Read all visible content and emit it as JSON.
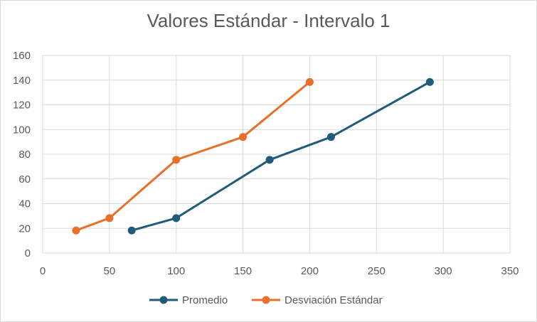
{
  "chart_data": {
    "type": "scatter",
    "title": "Valores Estándar - Intervalo 1",
    "xlim": [
      0,
      350
    ],
    "ylim": [
      0,
      160
    ],
    "x_ticks": [
      0,
      50,
      100,
      150,
      200,
      250,
      300,
      350
    ],
    "y_ticks": [
      0,
      20,
      40,
      60,
      80,
      100,
      120,
      140,
      160
    ],
    "grid": true,
    "legend_position": "bottom",
    "series": [
      {
        "name": "Promedio",
        "color": "#1f5c7a",
        "points": [
          {
            "x": 66.7,
            "y": 18.3
          },
          {
            "x": 100,
            "y": 28.3
          },
          {
            "x": 170,
            "y": 75.5
          },
          {
            "x": 216,
            "y": 94
          },
          {
            "x": 290,
            "y": 138.5
          }
        ]
      },
      {
        "name": "Desviación Estándar",
        "color": "#e8702a",
        "points": [
          {
            "x": 25,
            "y": 18.3
          },
          {
            "x": 50,
            "y": 28.3
          },
          {
            "x": 100,
            "y": 75.5
          },
          {
            "x": 150,
            "y": 94
          },
          {
            "x": 200,
            "y": 138.5
          }
        ]
      }
    ]
  }
}
